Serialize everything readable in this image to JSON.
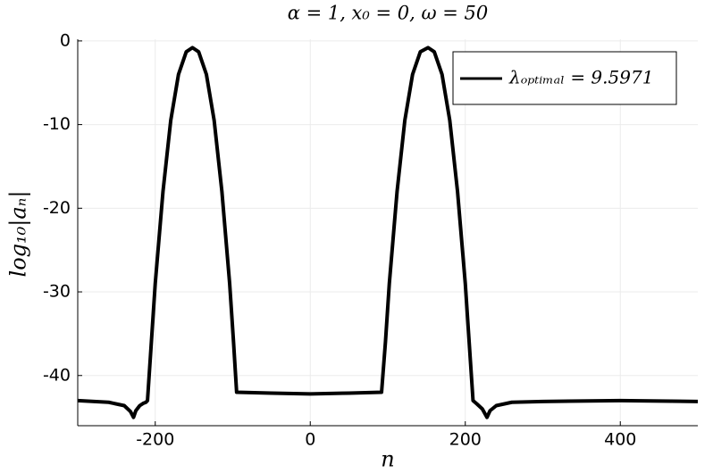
{
  "chart_data": {
    "type": "line",
    "title": "α = 1, x₀ = 0, ω = 50",
    "x_label": "n",
    "y_label": "log₁₀|aₙ|",
    "x": [
      -300,
      -260,
      -240,
      -232,
      -228,
      -225,
      -220,
      -215,
      -212,
      -210,
      -205,
      -200,
      -190,
      -180,
      -170,
      -160,
      -152,
      -144,
      -134,
      -124,
      -114,
      -104,
      -99,
      -95,
      -50,
      0,
      50,
      92,
      97,
      102,
      112,
      122,
      132,
      142,
      152,
      160,
      170,
      180,
      190,
      200,
      205,
      210,
      215,
      222,
      228,
      232,
      240,
      260,
      300,
      400,
      500
    ],
    "series": [
      {
        "name": "λₒₚₜᵢₘₐₗ = 9.5971",
        "color": "#000000",
        "values": [
          -43,
          -43.2,
          -43.6,
          -44.3,
          -45,
          -44.2,
          -43.6,
          -43.3,
          -43.2,
          -43,
          -36,
          -29,
          -18,
          -9.5,
          -4,
          -1.3,
          -0.8,
          -1.3,
          -4,
          -9.5,
          -18,
          -29,
          -36,
          -42,
          -42.1,
          -42.2,
          -42.1,
          -42,
          -36,
          -29,
          -18,
          -9.5,
          -4,
          -1.3,
          -0.8,
          -1.3,
          -4,
          -9.5,
          -18,
          -29,
          -36,
          -43,
          -43.4,
          -44,
          -45,
          -44.2,
          -43.6,
          -43.2,
          -43.1,
          -43,
          -43.1
        ]
      }
    ],
    "xlim": [
      -300,
      500
    ],
    "xticks": [
      -200,
      0,
      200,
      400
    ],
    "ylim": [
      -46,
      0.2
    ],
    "yticks": [
      -40,
      -30,
      -20,
      -10,
      0
    ],
    "grid": true,
    "legend": "top-right"
  }
}
